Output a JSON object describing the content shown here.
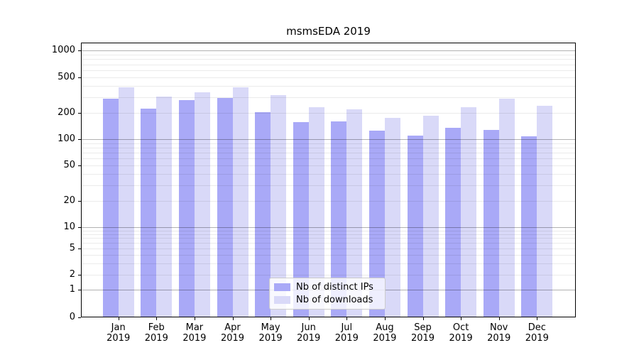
{
  "title": "msmsEDA 2019",
  "chart_data": {
    "type": "bar",
    "title": "msmsEDA 2019",
    "xlabel": "",
    "ylabel": "",
    "scale": "log-like (symlog with 0 baseline)",
    "ylim": [
      0,
      1000
    ],
    "yticks": [
      0,
      1,
      2,
      5,
      10,
      20,
      50,
      100,
      200,
      500,
      1000
    ],
    "ytick_labels": [
      "0",
      "1",
      "2",
      "5",
      "10",
      "20",
      "50",
      "100",
      "200",
      "500",
      "1000"
    ],
    "categories": [
      "Jan 2019",
      "Feb 2019",
      "Mar 2019",
      "Apr 2019",
      "May 2019",
      "Jun 2019",
      "Jul 2019",
      "Aug 2019",
      "Sep 2019",
      "Oct 2019",
      "Nov 2019",
      "Dec 2019"
    ],
    "months": [
      "Jan",
      "Feb",
      "Mar",
      "Apr",
      "May",
      "Jun",
      "Jul",
      "Aug",
      "Sep",
      "Oct",
      "Nov",
      "Dec"
    ],
    "year": "2019",
    "series": [
      {
        "name": "Nb of distinct IPs",
        "color": "#a9a9f7",
        "values": [
          287,
          225,
          280,
          295,
          205,
          157,
          159,
          126,
          110,
          134,
          128,
          108
        ]
      },
      {
        "name": "Nb of downloads",
        "color": "#d9d9f8",
        "values": [
          389,
          305,
          340,
          384,
          318,
          232,
          218,
          174,
          185,
          233,
          289,
          242
        ]
      }
    ],
    "grid": "horizontal major and minor gridlines, drawn over bars",
    "legend_position": "lower center"
  },
  "colors": {
    "bar_distinct_ips": "#a9a9f7",
    "bar_downloads": "#d9d9f8",
    "spine": "#000000",
    "grid_major": "#aaaaaa",
    "grid_minor": "#e8e8e8",
    "background": "#ffffff"
  }
}
